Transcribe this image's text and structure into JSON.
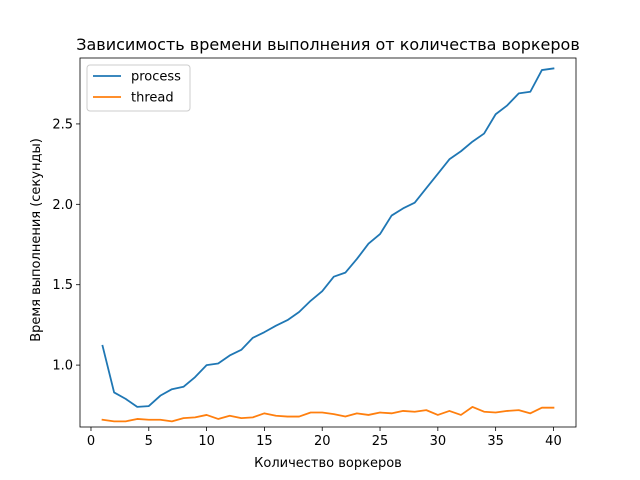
{
  "chart_data": {
    "type": "line",
    "title": "Зависимость времени выполнения от количества воркеров",
    "xlabel": "Количество воркеров",
    "ylabel": "Время выполнения (секунды)",
    "xlim": [
      -0.95,
      41.95
    ],
    "ylim": [
      0.615,
      2.91
    ],
    "xticks": [
      0,
      5,
      10,
      15,
      20,
      25,
      30,
      35,
      40
    ],
    "yticks": [
      1.0,
      1.5,
      2.0,
      2.5
    ],
    "ytick_labels": [
      "1.0",
      "1.5",
      "2.0",
      "2.5"
    ],
    "grid": false,
    "legend_position": "top-left",
    "x": [
      1,
      2,
      3,
      4,
      5,
      6,
      7,
      8,
      9,
      10,
      11,
      12,
      13,
      14,
      15,
      16,
      17,
      18,
      19,
      20,
      21,
      22,
      23,
      24,
      25,
      26,
      27,
      28,
      29,
      30,
      31,
      32,
      33,
      34,
      35,
      36,
      37,
      38,
      39,
      40
    ],
    "series": [
      {
        "name": "process",
        "color": "#1f77b4",
        "values": [
          1.12,
          0.83,
          0.79,
          0.74,
          0.745,
          0.81,
          0.85,
          0.865,
          0.925,
          1.0,
          1.01,
          1.06,
          1.095,
          1.17,
          1.205,
          1.245,
          1.28,
          1.33,
          1.4,
          1.46,
          1.55,
          1.575,
          1.66,
          1.755,
          1.815,
          1.93,
          1.975,
          2.01,
          2.1,
          2.19,
          2.28,
          2.33,
          2.39,
          2.44,
          2.56,
          2.615,
          2.69,
          2.7,
          2.835,
          2.845
        ]
      },
      {
        "name": "thread",
        "color": "#ff7f0e",
        "values": [
          0.66,
          0.65,
          0.65,
          0.665,
          0.66,
          0.66,
          0.65,
          0.67,
          0.675,
          0.69,
          0.665,
          0.685,
          0.67,
          0.675,
          0.7,
          0.685,
          0.68,
          0.68,
          0.705,
          0.705,
          0.695,
          0.68,
          0.7,
          0.69,
          0.705,
          0.7,
          0.715,
          0.71,
          0.72,
          0.69,
          0.715,
          0.69,
          0.74,
          0.71,
          0.705,
          0.715,
          0.72,
          0.7,
          0.735,
          0.735
        ]
      }
    ]
  }
}
